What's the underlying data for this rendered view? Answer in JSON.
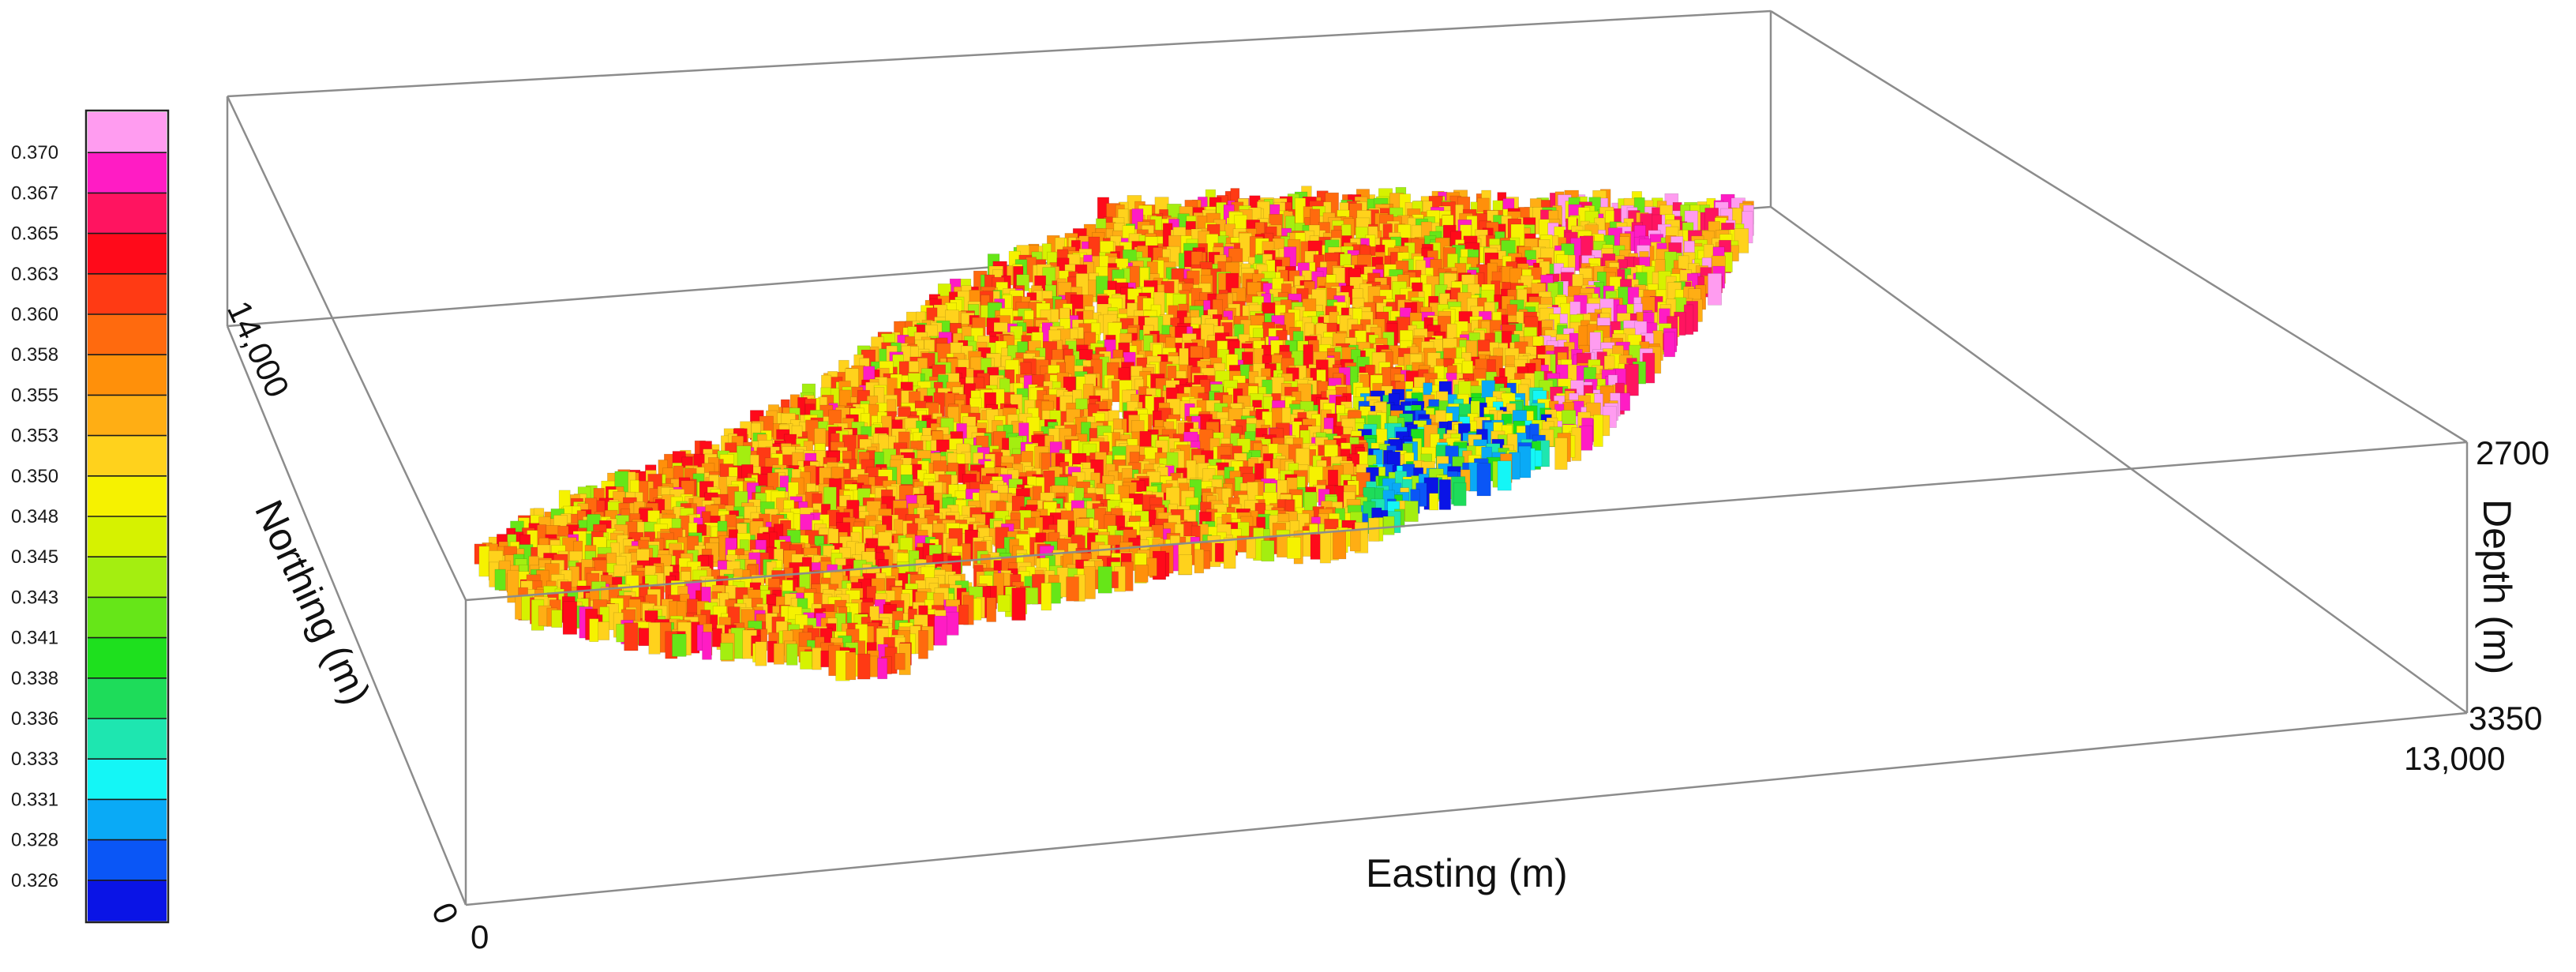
{
  "chart_data": {
    "type": "3d-voxel",
    "colorbar": {
      "labels": [
        "0.370",
        "0.367",
        "0.365",
        "0.363",
        "0.360",
        "0.358",
        "0.355",
        "0.353",
        "0.350",
        "0.348",
        "0.345",
        "0.343",
        "0.341",
        "0.338",
        "0.336",
        "0.333",
        "0.331",
        "0.328",
        "0.326"
      ],
      "colors": [
        "#ff9cf0",
        "#ff1cc4",
        "#ff1460",
        "#ff0a1a",
        "#ff3a14",
        "#ff6a0e",
        "#ff900a",
        "#ffae14",
        "#ffd21c",
        "#f6f200",
        "#d6f200",
        "#a4ee10",
        "#66e618",
        "#1ee01e",
        "#1edc5a",
        "#1ee6b0",
        "#14f6f6",
        "#0aaaf6",
        "#0a56f6",
        "#0a14e6"
      ],
      "range": [
        0.326,
        0.37
      ]
    },
    "axes": {
      "x": {
        "label": "Easting (m)",
        "ticks": [
          "0",
          "13,000"
        ]
      },
      "y": {
        "label": "Northing (m)",
        "ticks": [
          "0",
          "14,000"
        ]
      },
      "z": {
        "label": "Depth (m)",
        "ticks": [
          "2700",
          "3350"
        ]
      }
    },
    "grid": false,
    "legend": "left"
  }
}
